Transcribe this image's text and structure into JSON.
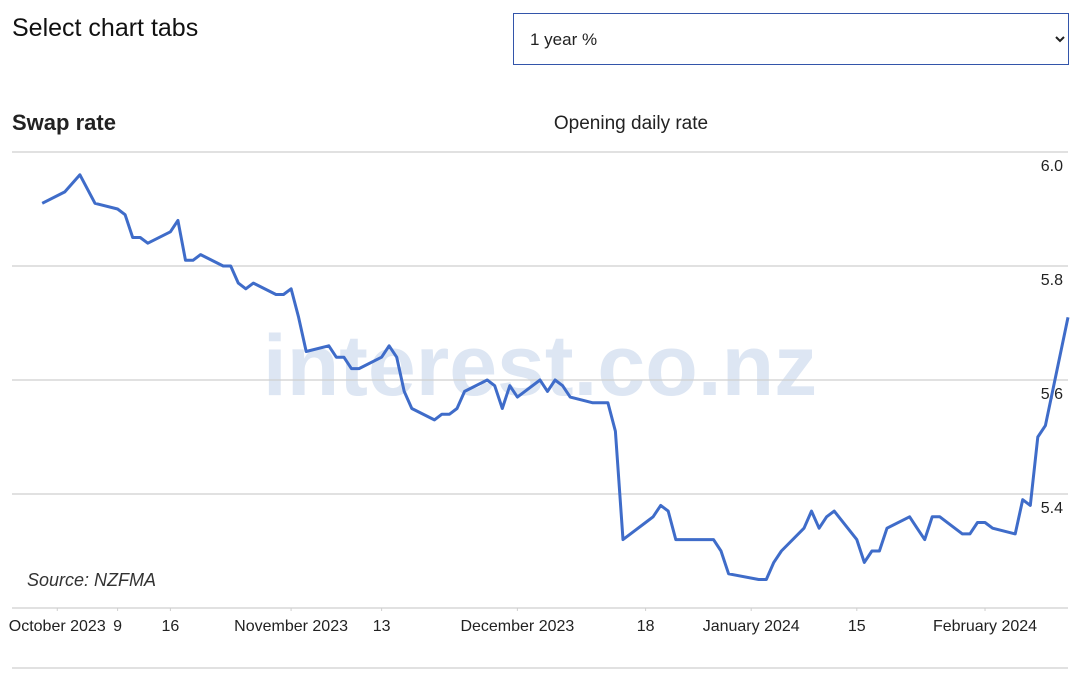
{
  "header": {
    "title": "Select chart tabs",
    "selector": "1 year %"
  },
  "chart_data": {
    "type": "line",
    "title": "Swap rate",
    "subtitle": "Opening daily rate",
    "source": "Source: NZFMA",
    "watermark": "interest.co.nz",
    "x": [
      "2023-09-29",
      "2023-10-02",
      "2023-10-04",
      "2023-10-06",
      "2023-10-09",
      "2023-10-10",
      "2023-10-11",
      "2023-10-12",
      "2023-10-13",
      "2023-10-16",
      "2023-10-17",
      "2023-10-18",
      "2023-10-19",
      "2023-10-20",
      "2023-10-23",
      "2023-10-24",
      "2023-10-25",
      "2023-10-26",
      "2023-10-27",
      "2023-10-30",
      "2023-10-31",
      "2023-11-01",
      "2023-11-02",
      "2023-11-03",
      "2023-11-06",
      "2023-11-07",
      "2023-11-08",
      "2023-11-09",
      "2023-11-10",
      "2023-11-13",
      "2023-11-14",
      "2023-11-15",
      "2023-11-16",
      "2023-11-17",
      "2023-11-20",
      "2023-11-21",
      "2023-11-22",
      "2023-11-23",
      "2023-11-24",
      "2023-11-27",
      "2023-11-28",
      "2023-11-29",
      "2023-11-30",
      "2023-12-01",
      "2023-12-04",
      "2023-12-05",
      "2023-12-06",
      "2023-12-07",
      "2023-12-08",
      "2023-12-11",
      "2023-12-12",
      "2023-12-13",
      "2023-12-14",
      "2023-12-15",
      "2023-12-18",
      "2023-12-19",
      "2023-12-20",
      "2023-12-21",
      "2023-12-22",
      "2023-12-27",
      "2023-12-28",
      "2023-12-29",
      "2024-01-02",
      "2024-01-03",
      "2024-01-04",
      "2024-01-05",
      "2024-01-08",
      "2024-01-09",
      "2024-01-10",
      "2024-01-11",
      "2024-01-12",
      "2024-01-15",
      "2024-01-16",
      "2024-01-17",
      "2024-01-18",
      "2024-01-19",
      "2024-01-22",
      "2024-01-23",
      "2024-01-24",
      "2024-01-25",
      "2024-01-26",
      "2024-01-29",
      "2024-01-30",
      "2024-01-31",
      "2024-02-01",
      "2024-02-02",
      "2024-02-05",
      "2024-02-06",
      "2024-02-07",
      "2024-02-08",
      "2024-02-09",
      "2024-02-12"
    ],
    "series": [
      {
        "name": "1 year %",
        "color": "#3f6cc9",
        "values": [
          5.91,
          5.93,
          5.96,
          5.91,
          5.9,
          5.89,
          5.85,
          5.85,
          5.84,
          5.86,
          5.88,
          5.81,
          5.81,
          5.82,
          5.8,
          5.8,
          5.77,
          5.76,
          5.77,
          5.75,
          5.75,
          5.76,
          5.71,
          5.65,
          5.66,
          5.64,
          5.64,
          5.62,
          5.62,
          5.64,
          5.66,
          5.64,
          5.58,
          5.55,
          5.53,
          5.54,
          5.54,
          5.55,
          5.58,
          5.6,
          5.59,
          5.55,
          5.59,
          5.57,
          5.6,
          5.58,
          5.6,
          5.59,
          5.57,
          5.56,
          5.56,
          5.56,
          5.51,
          5.32,
          5.35,
          5.36,
          5.38,
          5.37,
          5.32,
          5.32,
          5.3,
          5.26,
          5.25,
          5.25,
          5.28,
          5.3,
          5.34,
          5.37,
          5.34,
          5.36,
          5.37,
          5.32,
          5.28,
          5.3,
          5.3,
          5.34,
          5.36,
          5.34,
          5.32,
          5.36,
          5.36,
          5.33,
          5.33,
          5.35,
          5.35,
          5.34,
          5.33,
          5.39,
          5.38,
          5.5,
          5.52,
          5.71
        ]
      }
    ],
    "xlim": [
      "2023-09-25",
      "2024-02-12"
    ],
    "xticks": [
      {
        "value": "2023-10-01",
        "label": "October 2023"
      },
      {
        "value": "2023-10-09",
        "label": "9"
      },
      {
        "value": "2023-10-16",
        "label": "16"
      },
      {
        "value": "2023-11-01",
        "label": "November 2023"
      },
      {
        "value": "2023-11-13",
        "label": "13"
      },
      {
        "value": "2023-12-01",
        "label": "December 2023"
      },
      {
        "value": "2023-12-18",
        "label": "18"
      },
      {
        "value": "2024-01-01",
        "label": "January 2024"
      },
      {
        "value": "2024-01-15",
        "label": "15"
      },
      {
        "value": "2024-02-01",
        "label": "February 2024"
      }
    ],
    "ylim": [
      5.2,
      6.0
    ],
    "yticks": [
      5.4,
      5.6,
      {
        "value": 5.8,
        "label": "5.8"
      },
      {
        "value": 6.0,
        "label": "6.0"
      }
    ],
    "grid": true
  }
}
